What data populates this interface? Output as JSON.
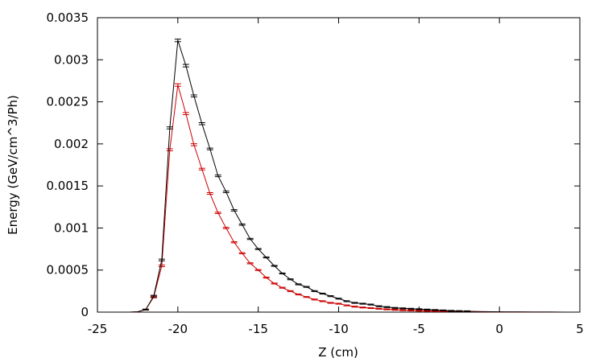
{
  "chart_data": {
    "type": "line",
    "title": "",
    "xlabel": "Z (cm)",
    "ylabel": "Energy (GeV/cm^3/Ph)",
    "xlim": [
      -25,
      5
    ],
    "ylim": [
      0,
      0.0035
    ],
    "x_ticks": [
      -25,
      -20,
      -15,
      -10,
      -5,
      0,
      5
    ],
    "x_tick_labels": [
      "-25",
      "-20",
      "-15",
      "-10",
      "-5",
      "0",
      "5"
    ],
    "y_ticks": [
      0,
      0.0005,
      0.001,
      0.0015,
      0.002,
      0.0025,
      0.003,
      0.0035
    ],
    "y_tick_labels": [
      "0",
      "0.0005",
      "0.001",
      "0.0015",
      "0.002",
      "0.0025",
      "0.003",
      "0.0035"
    ],
    "grid": false,
    "legend": "none",
    "error_bars": true,
    "series": [
      {
        "color": "#000000",
        "x": [
          -25,
          -24.5,
          -24,
          -23.5,
          -23,
          -22.5,
          -22,
          -21.5,
          -21,
          -20.5,
          -20,
          -19.5,
          -19,
          -18.5,
          -18,
          -17.5,
          -17,
          -16.5,
          -16,
          -15.5,
          -15,
          -14.5,
          -14,
          -13.5,
          -13,
          -12.5,
          -12,
          -11.5,
          -11,
          -10.5,
          -10,
          -9.5,
          -9,
          -8.5,
          -8,
          -7.5,
          -7,
          -6.5,
          -6,
          -5.5,
          -5,
          -4.5,
          -4,
          -3.5,
          -3,
          -2.5,
          -2,
          -1.5,
          -1,
          -0.5,
          0,
          0.5,
          1,
          1.5,
          2,
          2.5,
          3,
          3.5,
          4,
          4.5,
          5
        ],
        "y": [
          0,
          0,
          0,
          0,
          0,
          5e-06,
          3e-05,
          0.00019,
          0.00062,
          0.00219,
          0.00323,
          0.00293,
          0.00257,
          0.00224,
          0.00194,
          0.00162,
          0.00143,
          0.00121,
          0.00104,
          0.00087,
          0.00075,
          0.00065,
          0.00055,
          0.00046,
          0.00039,
          0.00033,
          0.0003,
          0.00025,
          0.00022,
          0.00019,
          0.00016,
          0.00013,
          0.00011,
          0.0001,
          9e-05,
          7e-05,
          6e-05,
          5e-05,
          4.5e-05,
          4e-05,
          3.5e-05,
          3e-05,
          2.5e-05,
          2e-05,
          1.5e-05,
          1.2e-05,
          1e-05,
          8e-06,
          6e-06,
          5e-06,
          4e-06,
          3e-06,
          2e-06,
          2e-06,
          1e-06,
          1e-06,
          1e-06,
          1e-06,
          0,
          0,
          0
        ],
        "err": [
          0,
          0,
          0,
          0,
          0,
          0,
          4e-06,
          1e-05,
          1e-05,
          1.2e-05,
          1.5e-05,
          1.5e-05,
          1.2e-05,
          1.2e-05,
          1e-05,
          1e-05,
          1e-05,
          8e-06,
          8e-06,
          7e-06,
          6e-06,
          6e-06,
          5e-06,
          5e-06,
          4e-06,
          4e-06,
          4e-06,
          3e-06,
          3e-06,
          3e-06,
          3e-06,
          2e-06,
          2e-06,
          2e-06,
          2e-06,
          2e-06,
          2e-06,
          2e-06,
          1e-06,
          1e-06,
          1e-06,
          1e-06,
          1e-06,
          1e-06,
          1e-06,
          1e-06,
          1e-06,
          1e-06,
          1e-06,
          1e-06,
          1e-06,
          1e-06,
          1e-06,
          1e-06,
          1e-06,
          1e-06,
          1e-06,
          1e-06,
          0,
          0,
          0
        ]
      },
      {
        "color": "#cc0000",
        "x": [
          -25,
          -24.5,
          -24,
          -23.5,
          -23,
          -22.5,
          -22,
          -21.5,
          -21,
          -20.5,
          -20,
          -19.5,
          -19,
          -18.5,
          -18,
          -17.5,
          -17,
          -16.5,
          -16,
          -15.5,
          -15,
          -14.5,
          -14,
          -13.5,
          -13,
          -12.5,
          -12,
          -11.5,
          -11,
          -10.5,
          -10,
          -9.5,
          -9,
          -8.5,
          -8,
          -7.5,
          -7,
          -6.5,
          -6,
          -5.5,
          -5,
          -4.5,
          -4,
          -3.5,
          -3,
          -2.5,
          -2,
          -1.5,
          -1,
          -0.5,
          0,
          0.5,
          1,
          1.5,
          2,
          2.5,
          3,
          3.5,
          4,
          4.5,
          5
        ],
        "y": [
          0,
          0,
          0,
          0,
          0,
          4e-06,
          3e-05,
          0.00018,
          0.00055,
          0.00193,
          0.0027,
          0.00236,
          0.00199,
          0.0017,
          0.00141,
          0.00118,
          0.001,
          0.00083,
          0.0007,
          0.00058,
          0.0005,
          0.00041,
          0.00034,
          0.00029,
          0.00025,
          0.00021,
          0.00018,
          0.00015,
          0.00013,
          0.00011,
          0.0001,
          8e-05,
          6.5e-05,
          5.5e-05,
          4.8e-05,
          4e-05,
          3.3e-05,
          2.8e-05,
          2.3e-05,
          2e-05,
          1.7e-05,
          1.4e-05,
          1.2e-05,
          1e-05,
          8e-06,
          7e-06,
          6e-06,
          5e-06,
          4e-06,
          3e-06,
          3e-06,
          2e-06,
          2e-06,
          1e-06,
          1e-06,
          1e-06,
          1e-06,
          0,
          0,
          0,
          0
        ],
        "err": [
          0,
          0,
          0,
          0,
          0,
          0,
          4e-06,
          1e-05,
          1e-05,
          1.2e-05,
          1.5e-05,
          1.3e-05,
          1.2e-05,
          1e-05,
          1e-05,
          8e-06,
          8e-06,
          7e-06,
          6e-06,
          6e-06,
          5e-06,
          5e-06,
          4e-06,
          4e-06,
          4e-06,
          3e-06,
          3e-06,
          3e-06,
          3e-06,
          2e-06,
          2e-06,
          2e-06,
          2e-06,
          2e-06,
          2e-06,
          1e-06,
          1e-06,
          1e-06,
          1e-06,
          1e-06,
          1e-06,
          1e-06,
          1e-06,
          1e-06,
          1e-06,
          1e-06,
          1e-06,
          1e-06,
          1e-06,
          1e-06,
          1e-06,
          1e-06,
          1e-06,
          1e-06,
          1e-06,
          1e-06,
          1e-06,
          0,
          0,
          0,
          0
        ]
      }
    ]
  }
}
